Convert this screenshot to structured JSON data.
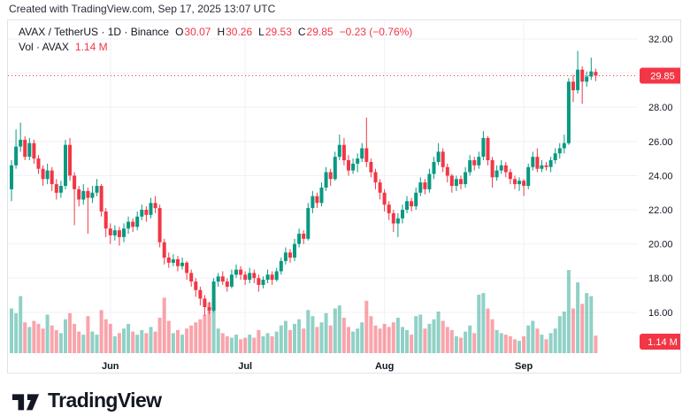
{
  "attribution": "Created with TradingView.com, Sep 17, 2025 13:07 UTC",
  "legend": {
    "title": "AVAX / TetherUS · 1D · Binance",
    "open_label": "O",
    "open_value": "30.07",
    "high_label": "H",
    "high_value": "30.26",
    "low_label": "L",
    "low_value": "29.53",
    "close_label": "C",
    "close_value": "29.85",
    "change": "−0.23 (−0.76%)",
    "vol_label": "Vol · AVAX",
    "vol_value": "1.14 M"
  },
  "badges": {
    "last_price": "29.85",
    "last_volume": "1.14 M"
  },
  "logo_text": "TradingView",
  "colors": {
    "up": "#089981",
    "down": "#F23645",
    "vol_up": "rgba(8,153,129,0.45)",
    "vol_down": "rgba(242,54,69,0.45)",
    "grid": "#f0f2f6",
    "panel_border": "#e0e3eb",
    "axis_text": "#131722",
    "month_text": "#131722",
    "accent_red": "#F23645",
    "badge_text": "#ffffff"
  },
  "price_axis": {
    "labels": [
      32,
      28,
      26,
      24,
      22,
      20,
      18,
      16
    ],
    "gridlines": [
      32,
      30,
      28,
      26,
      24,
      22,
      20,
      18,
      16
    ]
  },
  "chart_data": {
    "type": "candlestick",
    "symbol": "AVAX/TetherUS",
    "interval": "1D",
    "exchange": "Binance",
    "legend_note": "volume pane overlaid at bottom, unit millions",
    "visible_price_range": [
      15.5,
      32.5
    ],
    "months": [
      {
        "label": "Jun",
        "day_index": 22
      },
      {
        "label": "Jul",
        "day_index": 52
      },
      {
        "label": "Aug",
        "day_index": 83
      },
      {
        "label": "Sep",
        "day_index": 114
      }
    ],
    "last": {
      "open": 30.07,
      "high": 30.26,
      "low": 29.53,
      "close": 29.85,
      "change_text": "−0.23 (−0.76%)",
      "volume_m": 1.14
    },
    "volume_unit": "M",
    "candles_format": [
      "open",
      "high",
      "low",
      "close",
      "volume_m"
    ],
    "candles": [
      [
        23.2,
        24.9,
        22.5,
        24.6,
        2.9
      ],
      [
        24.6,
        26.7,
        24.4,
        25.7,
        2.6
      ],
      [
        25.7,
        27.1,
        25.4,
        26.1,
        3.7
      ],
      [
        26.1,
        26.3,
        24.9,
        25.1,
        2.0
      ],
      [
        25.1,
        26.2,
        24.9,
        25.9,
        1.7
      ],
      [
        25.9,
        26.1,
        24.7,
        25.0,
        2.1
      ],
      [
        25.0,
        25.2,
        24.1,
        24.4,
        1.9
      ],
      [
        24.4,
        24.6,
        23.4,
        23.8,
        1.6
      ],
      [
        23.8,
        24.7,
        23.5,
        24.3,
        2.5
      ],
      [
        24.3,
        24.5,
        23.1,
        23.5,
        1.8
      ],
      [
        23.5,
        23.8,
        22.6,
        23.0,
        1.5
      ],
      [
        23.0,
        23.7,
        22.7,
        23.4,
        1.3
      ],
      [
        23.4,
        26.1,
        23.2,
        25.8,
        2.2
      ],
      [
        25.8,
        26.2,
        23.7,
        24.0,
        2.6
      ],
      [
        24.0,
        24.2,
        21.1,
        23.2,
        1.9
      ],
      [
        23.2,
        23.4,
        22.2,
        22.6,
        1.4
      ],
      [
        22.6,
        23.5,
        22.3,
        23.1,
        1.2
      ],
      [
        23.1,
        23.3,
        20.6,
        22.7,
        2.4
      ],
      [
        22.7,
        23.4,
        22.4,
        23.0,
        1.4
      ],
      [
        23.0,
        23.8,
        22.8,
        23.4,
        1.2
      ],
      [
        23.4,
        23.5,
        21.6,
        21.9,
        2.8
      ],
      [
        21.9,
        22.1,
        20.4,
        20.9,
        2.2
      ],
      [
        20.9,
        21.2,
        20.0,
        20.5,
        1.9
      ],
      [
        20.5,
        21.1,
        20.2,
        20.8,
        1.1
      ],
      [
        20.8,
        21.0,
        19.9,
        20.4,
        1.3
      ],
      [
        20.4,
        21.2,
        20.1,
        20.9,
        1.6
      ],
      [
        20.9,
        21.6,
        20.6,
        21.3,
        1.9
      ],
      [
        21.3,
        21.5,
        20.7,
        21.0,
        1.4
      ],
      [
        21.0,
        21.9,
        20.8,
        21.6,
        1.2
      ],
      [
        21.6,
        22.3,
        21.4,
        22.0,
        1.5
      ],
      [
        22.0,
        22.2,
        21.3,
        21.7,
        1.3
      ],
      [
        21.7,
        22.7,
        21.5,
        22.4,
        1.7
      ],
      [
        22.4,
        22.8,
        21.8,
        22.1,
        1.4
      ],
      [
        22.1,
        22.3,
        19.8,
        20.1,
        2.3
      ],
      [
        20.1,
        20.3,
        18.8,
        19.2,
        3.6
      ],
      [
        19.2,
        19.5,
        18.6,
        18.9,
        2.1
      ],
      [
        18.9,
        19.4,
        18.7,
        19.1,
        1.3
      ],
      [
        19.1,
        19.3,
        18.4,
        18.7,
        1.5
      ],
      [
        18.7,
        19.2,
        18.5,
        18.9,
        1.2
      ],
      [
        18.9,
        19.0,
        17.9,
        18.3,
        1.6
      ],
      [
        18.3,
        18.5,
        17.5,
        17.8,
        1.8
      ],
      [
        17.8,
        18.0,
        16.9,
        17.3,
        2.0
      ],
      [
        17.3,
        17.5,
        16.4,
        16.8,
        2.2
      ],
      [
        16.8,
        17.0,
        15.8,
        16.3,
        2.5
      ],
      [
        16.3,
        16.6,
        15.9,
        16.1,
        3.3
      ],
      [
        16.1,
        18.0,
        16.0,
        17.8,
        3.0
      ],
      [
        17.8,
        18.3,
        17.5,
        18.1,
        1.6
      ],
      [
        18.1,
        18.4,
        17.6,
        17.8,
        1.3
      ],
      [
        17.8,
        18.0,
        17.2,
        17.5,
        1.1
      ],
      [
        17.5,
        18.5,
        17.4,
        18.2,
        1.0
      ],
      [
        18.2,
        18.8,
        18.0,
        18.5,
        1.2
      ],
      [
        18.5,
        18.7,
        17.9,
        18.2,
        0.9
      ],
      [
        18.2,
        18.4,
        17.6,
        17.9,
        1.0
      ],
      [
        17.9,
        18.6,
        17.7,
        18.3,
        1.2
      ],
      [
        18.3,
        18.5,
        17.7,
        18.0,
        1.0
      ],
      [
        18.0,
        18.2,
        17.2,
        17.6,
        1.5
      ],
      [
        17.6,
        18.1,
        17.4,
        17.9,
        1.1
      ],
      [
        17.9,
        18.5,
        17.7,
        18.2,
        1.3
      ],
      [
        18.2,
        18.4,
        17.6,
        17.9,
        1.1
      ],
      [
        17.9,
        18.6,
        17.8,
        18.4,
        1.4
      ],
      [
        18.4,
        19.2,
        18.2,
        19.0,
        1.8
      ],
      [
        19.0,
        19.8,
        18.8,
        19.5,
        2.1
      ],
      [
        19.5,
        19.7,
        18.9,
        19.2,
        1.5
      ],
      [
        19.2,
        20.3,
        19.0,
        20.0,
        1.9
      ],
      [
        20.0,
        20.9,
        19.8,
        20.6,
        2.2
      ],
      [
        20.6,
        20.8,
        20.0,
        20.3,
        1.6
      ],
      [
        20.3,
        22.4,
        20.2,
        22.1,
        2.8
      ],
      [
        22.1,
        23.1,
        21.8,
        22.8,
        2.4
      ],
      [
        22.8,
        23.0,
        22.1,
        22.4,
        1.7
      ],
      [
        22.4,
        23.6,
        22.2,
        23.3,
        2.0
      ],
      [
        23.3,
        24.5,
        23.1,
        24.2,
        2.6
      ],
      [
        24.2,
        24.4,
        23.4,
        23.8,
        1.8
      ],
      [
        23.8,
        25.4,
        23.7,
        25.1,
        2.9
      ],
      [
        25.1,
        26.4,
        24.9,
        25.8,
        3.1
      ],
      [
        25.8,
        26.2,
        24.6,
        24.9,
        2.3
      ],
      [
        24.9,
        25.2,
        24.0,
        24.3,
        1.7
      ],
      [
        24.3,
        25.0,
        24.1,
        24.7,
        1.4
      ],
      [
        24.7,
        25.3,
        24.2,
        25.0,
        1.6
      ],
      [
        25.0,
        25.9,
        24.8,
        25.6,
        2.0
      ],
      [
        25.6,
        27.4,
        24.5,
        24.8,
        3.4
      ],
      [
        24.8,
        25.0,
        23.9,
        24.2,
        2.4
      ],
      [
        24.2,
        24.4,
        23.2,
        23.6,
        1.8
      ],
      [
        23.6,
        23.8,
        22.6,
        23.0,
        1.6
      ],
      [
        23.0,
        23.2,
        21.9,
        22.3,
        1.9
      ],
      [
        22.3,
        22.5,
        21.4,
        21.8,
        1.7
      ],
      [
        21.8,
        22.0,
        20.7,
        21.2,
        2.0
      ],
      [
        21.2,
        21.8,
        20.4,
        21.5,
        2.3
      ],
      [
        21.5,
        22.3,
        21.2,
        22.0,
        1.7
      ],
      [
        22.0,
        22.8,
        21.8,
        22.5,
        1.5
      ],
      [
        22.5,
        22.7,
        21.9,
        22.2,
        1.2
      ],
      [
        22.2,
        23.3,
        22.0,
        23.0,
        2.4
      ],
      [
        23.0,
        23.9,
        22.8,
        23.6,
        2.5
      ],
      [
        23.6,
        23.8,
        22.9,
        23.2,
        1.6
      ],
      [
        23.2,
        24.4,
        23.0,
        24.1,
        1.9
      ],
      [
        24.1,
        25.1,
        23.8,
        24.8,
        2.2
      ],
      [
        24.8,
        25.9,
        24.6,
        25.4,
        2.7
      ],
      [
        25.4,
        25.6,
        24.2,
        24.5,
        2.1
      ],
      [
        24.5,
        24.7,
        23.6,
        24.0,
        1.7
      ],
      [
        24.0,
        24.1,
        23.0,
        23.4,
        1.5
      ],
      [
        23.4,
        24.0,
        23.1,
        23.8,
        1.1
      ],
      [
        23.8,
        24.0,
        23.2,
        23.5,
        1.0
      ],
      [
        23.5,
        24.5,
        23.3,
        24.2,
        1.4
      ],
      [
        24.2,
        25.2,
        24.0,
        24.9,
        1.8
      ],
      [
        24.9,
        25.1,
        24.3,
        24.6,
        1.3
      ],
      [
        24.6,
        25.4,
        24.4,
        25.1,
        3.8
      ],
      [
        25.1,
        26.6,
        24.9,
        26.2,
        3.9
      ],
      [
        26.2,
        26.3,
        24.6,
        24.9,
        2.9
      ],
      [
        24.9,
        25.1,
        23.3,
        23.9,
        2.2
      ],
      [
        23.9,
        24.6,
        23.7,
        24.3,
        1.5
      ],
      [
        24.3,
        24.9,
        24.1,
        24.6,
        1.3
      ],
      [
        24.6,
        24.8,
        23.9,
        24.2,
        1.2
      ],
      [
        24.2,
        24.4,
        23.5,
        23.8,
        1.1
      ],
      [
        23.8,
        24.0,
        23.2,
        23.5,
        0.9
      ],
      [
        23.5,
        23.9,
        23.1,
        23.7,
        0.8
      ],
      [
        23.7,
        23.8,
        22.8,
        23.4,
        1.1
      ],
      [
        23.4,
        24.7,
        23.2,
        24.5,
        1.8
      ],
      [
        24.5,
        25.4,
        24.3,
        25.1,
        2.1
      ],
      [
        25.1,
        25.6,
        24.2,
        24.4,
        1.6
      ],
      [
        24.4,
        24.9,
        24.2,
        24.6,
        1.2
      ],
      [
        24.6,
        24.8,
        24.3,
        24.5,
        0.9
      ],
      [
        24.5,
        25.1,
        24.2,
        24.9,
        1.3
      ],
      [
        24.9,
        25.6,
        24.7,
        25.3,
        1.6
      ],
      [
        25.3,
        25.9,
        25.0,
        25.6,
        2.4
      ],
      [
        25.6,
        26.4,
        25.3,
        25.9,
        2.7
      ],
      [
        25.9,
        29.7,
        25.8,
        29.5,
        5.4
      ],
      [
        29.5,
        29.9,
        28.3,
        29.0,
        2.9
      ],
      [
        29.0,
        31.3,
        28.8,
        30.2,
        4.6
      ],
      [
        30.2,
        30.4,
        28.2,
        29.5,
        3.2
      ],
      [
        29.5,
        30.1,
        29.2,
        29.8,
        3.9
      ],
      [
        29.8,
        30.9,
        29.6,
        30.1,
        3.7
      ],
      [
        30.07,
        30.26,
        29.53,
        29.85,
        1.14
      ]
    ]
  }
}
